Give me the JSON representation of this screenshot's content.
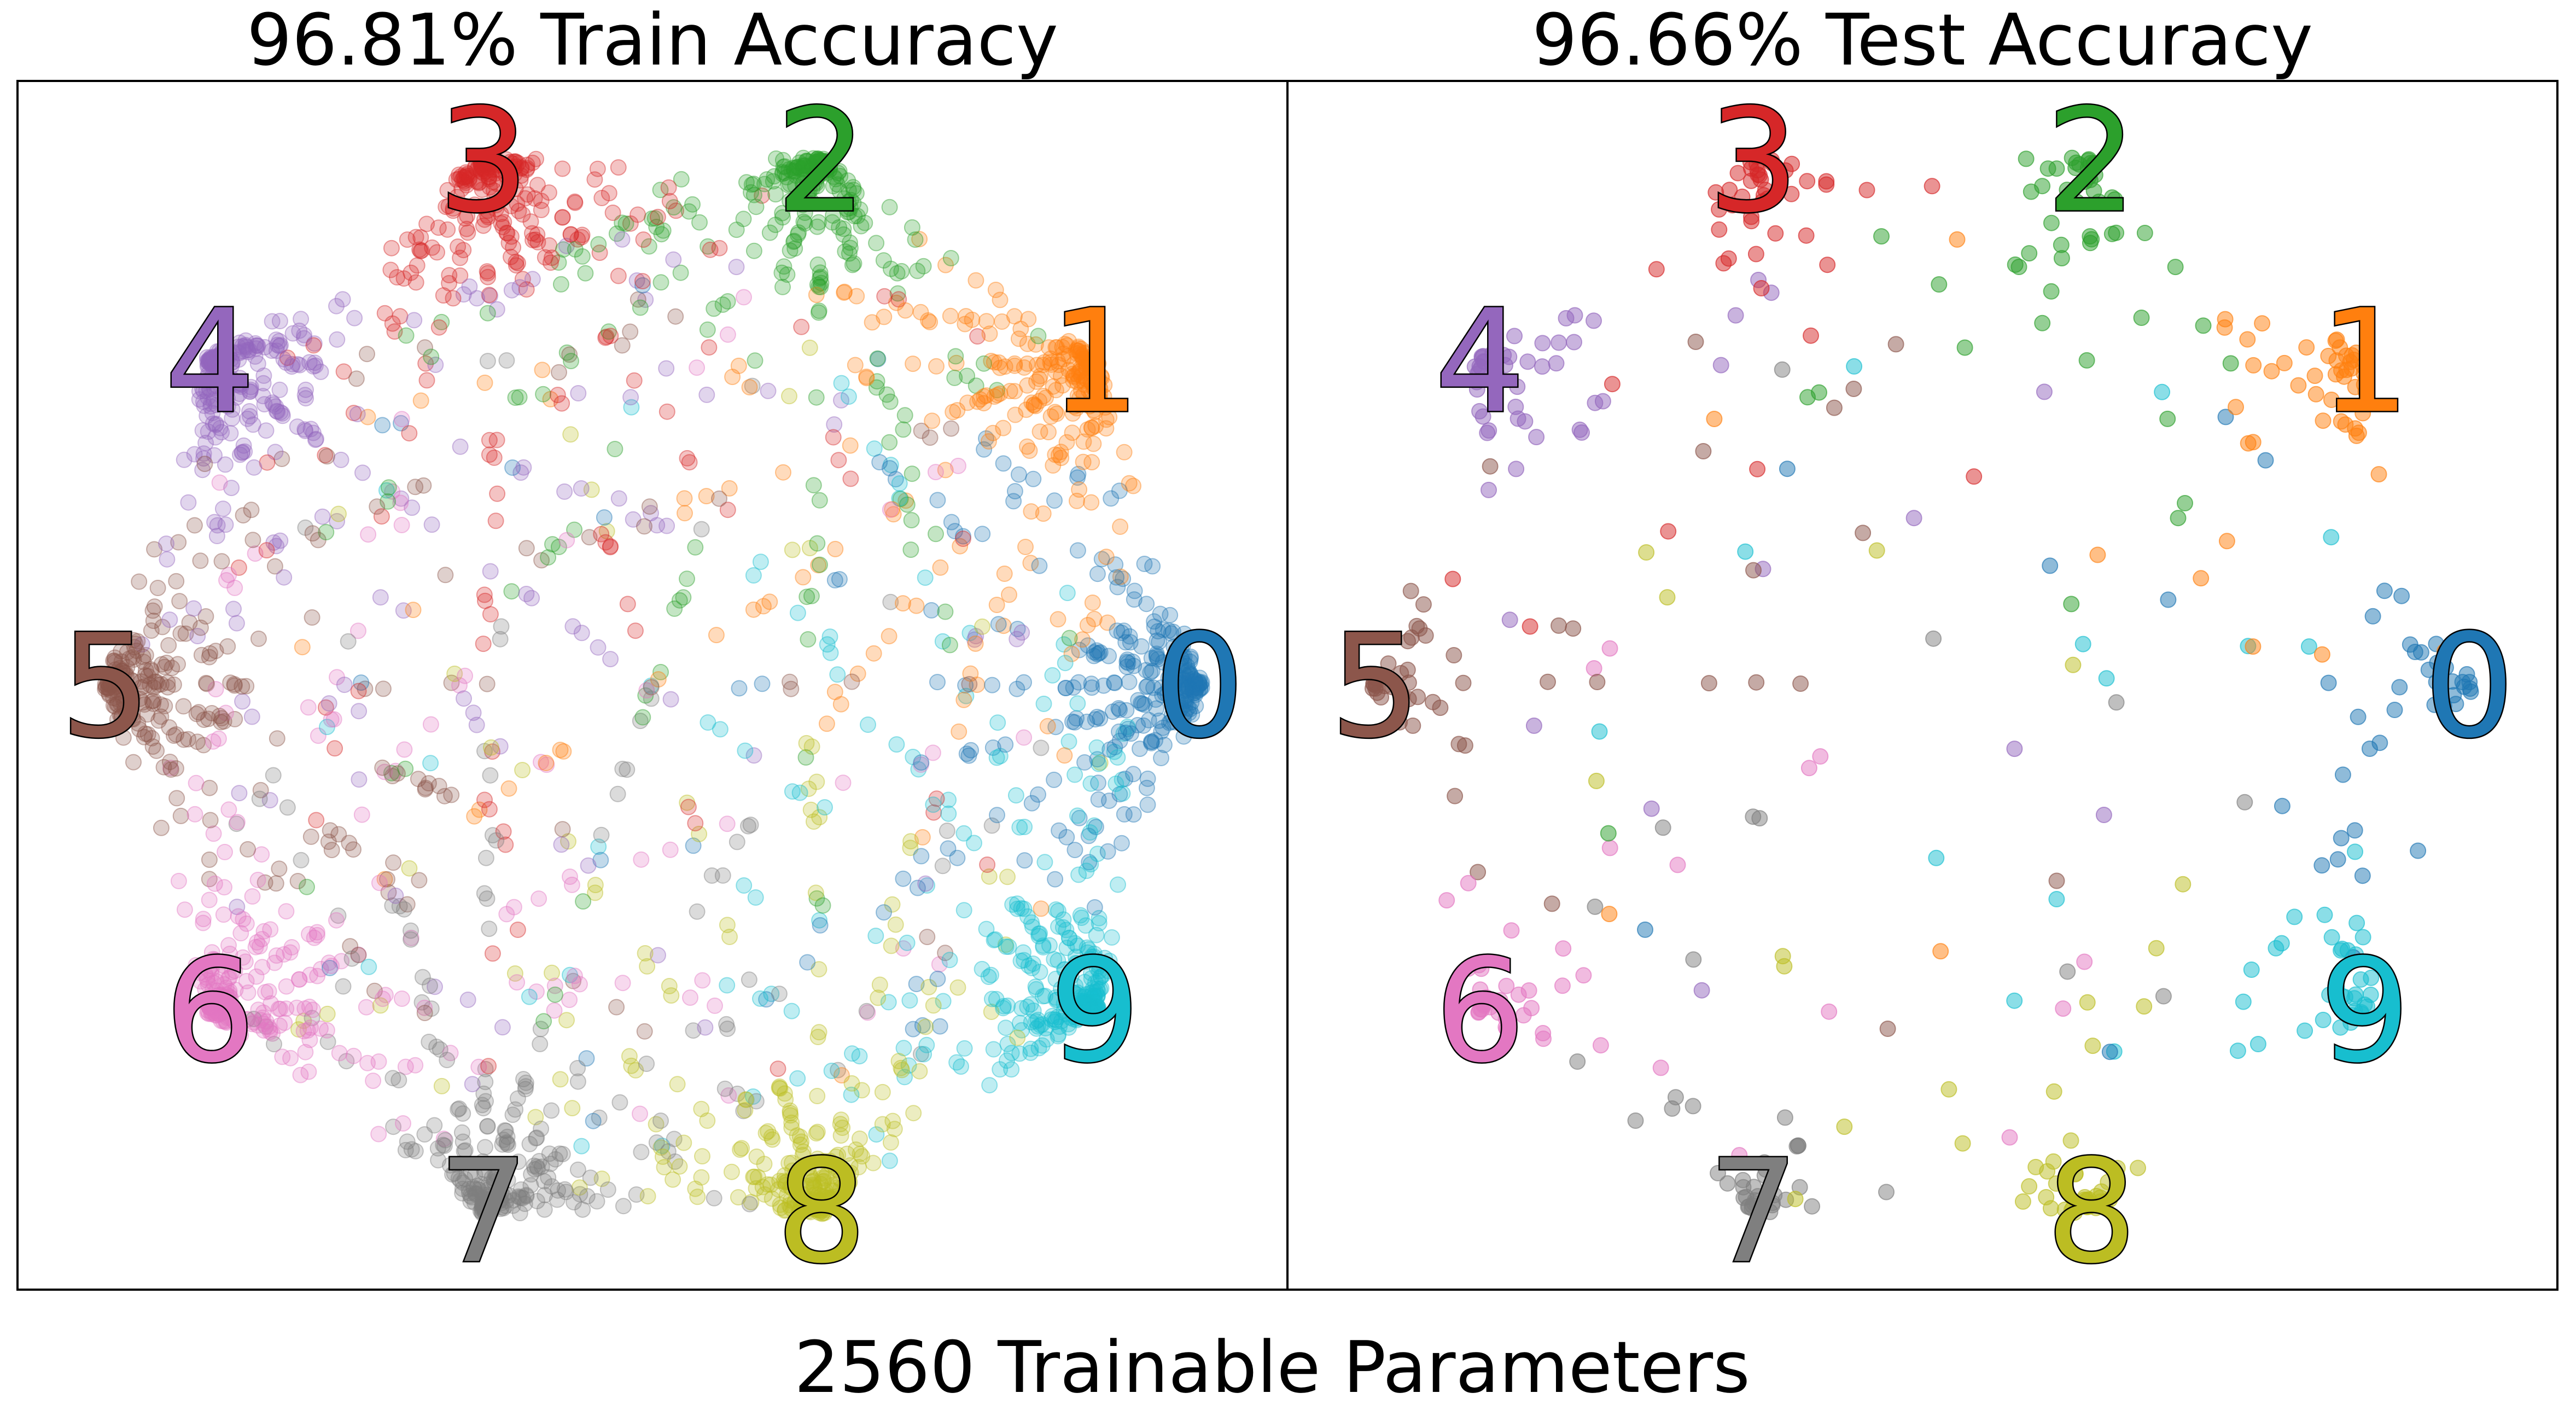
{
  "figure": {
    "suptitle": "2560 Trainable Parameters"
  },
  "colors": {
    "0": "#1f77b4",
    "1": "#ff7f0e",
    "2": "#2ca02c",
    "3": "#d62728",
    "4": "#9467bd",
    "5": "#8c564b",
    "6": "#e377c2",
    "7": "#7f7f7f",
    "8": "#bcbd22",
    "9": "#17becf"
  },
  "chart_data": [
    {
      "type": "scatter",
      "title": "96.81% Train Accuracy",
      "xlabel": "",
      "ylabel": "",
      "grid": false,
      "ticks": false,
      "classes": [
        "0",
        "1",
        "2",
        "3",
        "4",
        "5",
        "6",
        "7",
        "8",
        "9"
      ],
      "layout": "class anchors on a circle; points projected between anchors",
      "anchors": [
        {
          "label": "0",
          "angle_deg": 0
        },
        {
          "label": "1",
          "angle_deg": 36
        },
        {
          "label": "2",
          "angle_deg": 72
        },
        {
          "label": "3",
          "angle_deg": 108
        },
        {
          "label": "4",
          "angle_deg": 144
        },
        {
          "label": "5",
          "angle_deg": 180
        },
        {
          "label": "6",
          "angle_deg": 216
        },
        {
          "label": "7",
          "angle_deg": 252
        },
        {
          "label": "8",
          "angle_deg": 288
        },
        {
          "label": "9",
          "angle_deg": 324
        }
      ],
      "point_alpha": 0.28,
      "approx_points": 3000
    },
    {
      "type": "scatter",
      "title": "96.66% Test Accuracy",
      "xlabel": "",
      "ylabel": "",
      "grid": false,
      "ticks": false,
      "classes": [
        "0",
        "1",
        "2",
        "3",
        "4",
        "5",
        "6",
        "7",
        "8",
        "9"
      ],
      "layout": "class anchors on a circle; points projected between anchors",
      "anchors": [
        {
          "label": "0",
          "angle_deg": 0
        },
        {
          "label": "1",
          "angle_deg": 36
        },
        {
          "label": "2",
          "angle_deg": 72
        },
        {
          "label": "3",
          "angle_deg": 108
        },
        {
          "label": "4",
          "angle_deg": 144
        },
        {
          "label": "5",
          "angle_deg": 180
        },
        {
          "label": "6",
          "angle_deg": 216
        },
        {
          "label": "7",
          "angle_deg": 252
        },
        {
          "label": "8",
          "angle_deg": 288
        },
        {
          "label": "9",
          "angle_deg": 324
        }
      ],
      "point_alpha": 0.5,
      "approx_points": 500
    }
  ]
}
